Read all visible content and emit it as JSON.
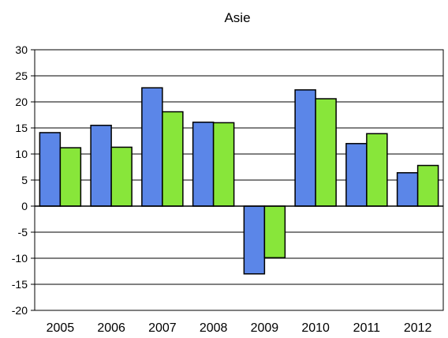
{
  "chart_data": {
    "type": "bar",
    "title": "Asie",
    "xlabel": "",
    "ylabel": "",
    "categories": [
      "2005",
      "2006",
      "2007",
      "2008",
      "2009",
      "2010",
      "2011",
      "2012"
    ],
    "series": [
      {
        "color": "#5b86e8",
        "values": [
          14.1,
          15.5,
          22.7,
          16.1,
          -13.0,
          22.3,
          12.0,
          6.4
        ]
      },
      {
        "color": "#88e63a",
        "values": [
          11.2,
          11.3,
          18.1,
          16.0,
          -9.9,
          20.6,
          13.9,
          7.8
        ]
      }
    ],
    "ylim": [
      -20,
      30
    ],
    "yticks": [
      30,
      25,
      20,
      15,
      10,
      5,
      0,
      -5,
      -10,
      -15,
      -20
    ],
    "grid": true,
    "legend": "none"
  }
}
